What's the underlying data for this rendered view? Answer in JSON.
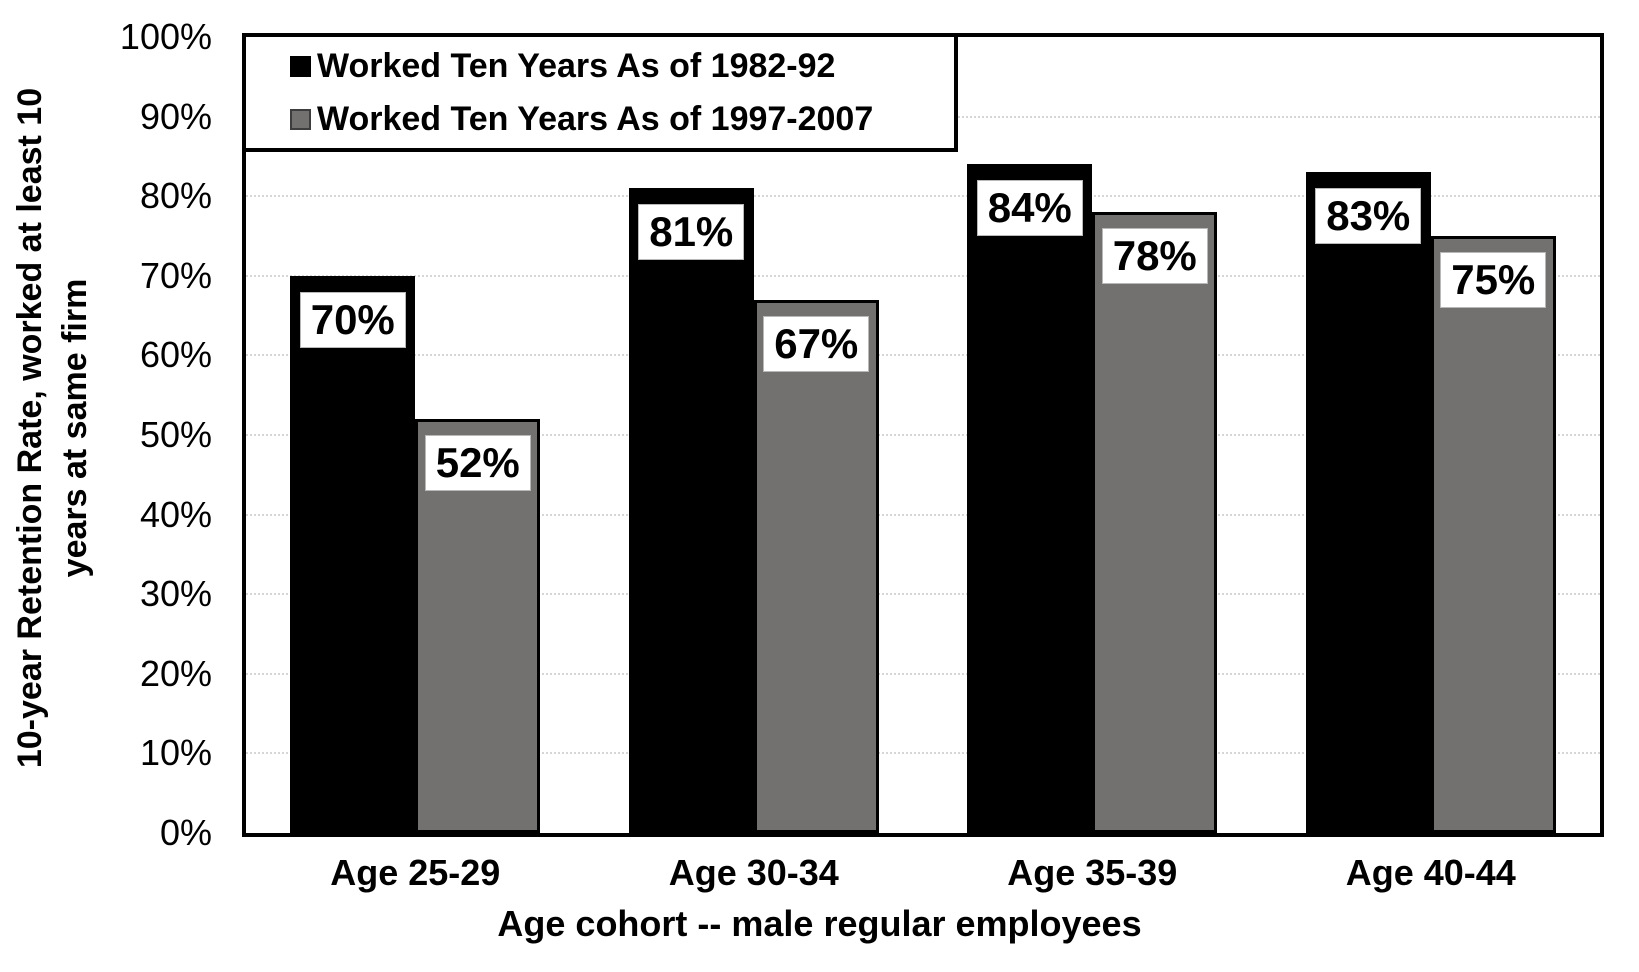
{
  "chart_data": {
    "type": "bar",
    "title": "",
    "categories": [
      "Age 25-29",
      "Age 30-34",
      "Age 35-39",
      "Age 40-44"
    ],
    "series": [
      {
        "name": "Worked Ten Years As of 1982-92",
        "values": [
          70,
          81,
          84,
          83
        ],
        "labels": [
          "70%",
          "81%",
          "84%",
          "83%"
        ],
        "color": "#000000"
      },
      {
        "name": "Worked Ten Years As of 1997-2007",
        "values": [
          52,
          67,
          78,
          75
        ],
        "labels": [
          "52%",
          "67%",
          "78%",
          "75%"
        ],
        "color": "#737070"
      }
    ],
    "xlabel": "Age cohort -- male regular employees",
    "ylabel_line1": "10-year Retention Rate, worked at least 10",
    "ylabel_line2": "years at same firm",
    "ylim": [
      0,
      100
    ],
    "ytick_step": 10,
    "ytick_labels": [
      "0%",
      "10%",
      "20%",
      "30%",
      "40%",
      "50%",
      "60%",
      "70%",
      "80%",
      "90%",
      "100%"
    ],
    "grid": "horizontal-dotted",
    "gridline_color": "#d6d6d6",
    "axis_color": "#000000",
    "legend_position": "top-left-inside",
    "bar_label_style": "white-box-black-bold-text"
  }
}
